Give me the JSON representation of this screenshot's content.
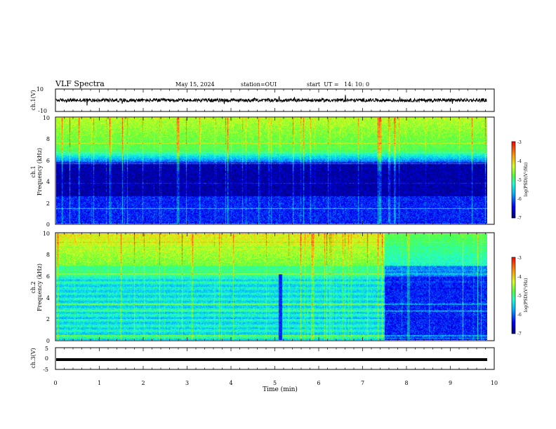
{
  "header": {
    "title": "VLF Spectra",
    "date": "May 15, 2024",
    "station": "station=OUI",
    "start": "start  UT =   14: 10: 0"
  },
  "colorbar": {
    "label": "log(PSD)(V²/Hz)",
    "ticks": [
      "-3",
      "-4",
      "-5",
      "-6",
      "-7"
    ]
  },
  "chart_data": [
    {
      "type": "line",
      "panel": "waveform-ch1",
      "ylabel": "ch.1(V)",
      "ylim": [
        -10,
        10
      ],
      "ytick_labels": [
        "10",
        "-10"
      ],
      "xlim": [
        0,
        10
      ],
      "baseline": 0,
      "noise_amplitude": 1.5
    },
    {
      "type": "heatmap",
      "panel": "spectrogram-ch1",
      "ylabel": "ch.1\nFrequency (kHz)",
      "ylim": [
        0,
        10
      ],
      "ytick_labels": [
        "0",
        "2",
        "4",
        "6",
        "8",
        "10"
      ],
      "xlim": [
        0,
        10
      ],
      "data_end_min": 9.83,
      "color_scale": [
        -7,
        -3
      ]
    },
    {
      "type": "heatmap",
      "panel": "spectrogram-ch2",
      "ylabel": "ch.2\nFrequency (kHz)",
      "ylim": [
        0,
        10
      ],
      "ytick_labels": [
        "0",
        "2",
        "4",
        "6",
        "8",
        "10"
      ],
      "xlim": [
        0,
        10
      ],
      "data_end_min": 9.83,
      "regime_change_min": 7.5,
      "color_scale": [
        -7,
        -3
      ]
    },
    {
      "type": "line",
      "panel": "waveform-ch3",
      "ylabel": "ch.3(V)",
      "ylim": [
        -5,
        5
      ],
      "ytick_labels": [
        "5",
        "0",
        "-5"
      ],
      "xlim": [
        0,
        10
      ],
      "value": -0.5
    }
  ],
  "xaxis": {
    "label": "Time (min)",
    "ticks": [
      "0",
      "1",
      "2",
      "3",
      "4",
      "5",
      "6",
      "7",
      "8",
      "9",
      "10"
    ]
  },
  "palette": [
    "#00007a",
    "#0000ff",
    "#00b4ff",
    "#20ffd0",
    "#50ff40",
    "#d8ff20",
    "#ff9a00",
    "#ff0000"
  ]
}
